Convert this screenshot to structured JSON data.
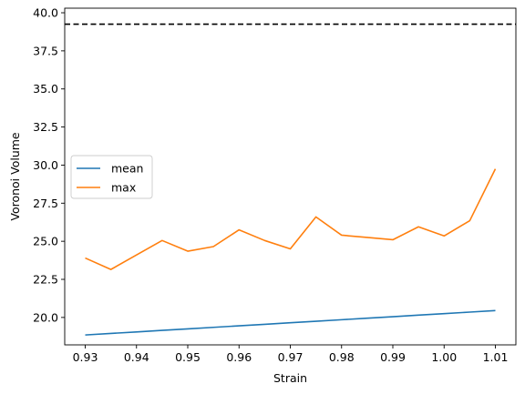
{
  "chart_data": {
    "type": "line",
    "xlabel": "Strain",
    "ylabel": "Voronoi Volume",
    "xlim": [
      0.926,
      1.014
    ],
    "ylim": [
      18.2,
      40.3
    ],
    "xticks": [
      0.93,
      0.94,
      0.95,
      0.96,
      0.97,
      0.98,
      0.99,
      1.0,
      1.01
    ],
    "xtick_labels": [
      "0.93",
      "0.94",
      "0.95",
      "0.96",
      "0.97",
      "0.98",
      "0.99",
      "1.00",
      "1.01"
    ],
    "yticks": [
      20.0,
      22.5,
      25.0,
      27.5,
      30.0,
      32.5,
      35.0,
      37.5,
      40.0
    ],
    "ytick_labels": [
      "20.0",
      "22.5",
      "25.0",
      "27.5",
      "30.0",
      "32.5",
      "35.0",
      "37.5",
      "40.0"
    ],
    "grid": false,
    "legend_position": "center-left",
    "series": [
      {
        "name": "mean",
        "color": "#1f77b4",
        "x": [
          0.93,
          0.935,
          0.94,
          0.945,
          0.95,
          0.955,
          0.96,
          0.965,
          0.97,
          0.975,
          0.98,
          0.985,
          0.99,
          0.995,
          1.0,
          1.005,
          1.01
        ],
        "y": [
          18.85,
          18.95,
          19.05,
          19.15,
          19.25,
          19.35,
          19.45,
          19.55,
          19.65,
          19.75,
          19.85,
          19.95,
          20.05,
          20.15,
          20.25,
          20.35,
          20.45
        ]
      },
      {
        "name": "max",
        "color": "#ff7f0e",
        "x": [
          0.93,
          0.935,
          0.94,
          0.945,
          0.95,
          0.955,
          0.96,
          0.965,
          0.97,
          0.975,
          0.98,
          0.985,
          0.99,
          0.995,
          1.0,
          1.005,
          1.01
        ],
        "y": [
          23.9,
          23.15,
          24.1,
          25.05,
          24.35,
          24.65,
          25.75,
          25.05,
          24.5,
          26.6,
          25.4,
          25.25,
          25.1,
          25.95,
          25.35,
          26.35,
          29.75
        ]
      }
    ],
    "reference_line": {
      "orientation": "horizontal",
      "y": 39.25,
      "color": "#000000",
      "style": "dashed"
    }
  }
}
